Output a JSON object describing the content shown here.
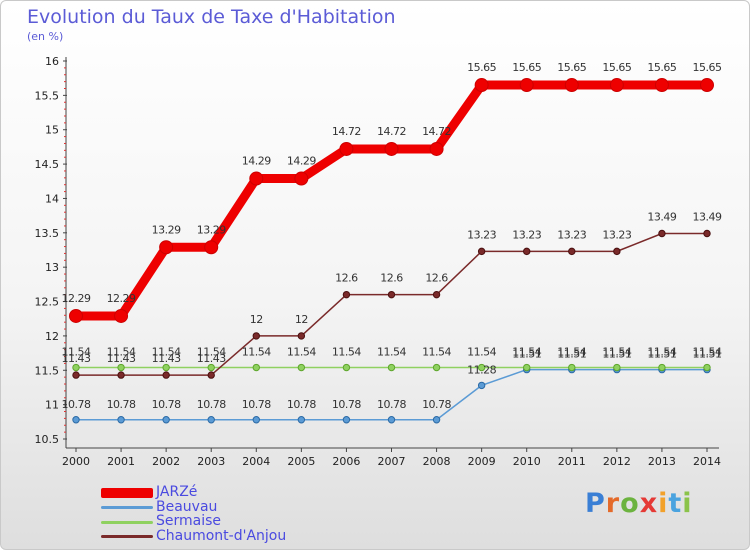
{
  "title": "Evolution du Taux de Taxe d'Habitation",
  "subtitle": "(en %)",
  "brand": {
    "text": "Proxiti",
    "letter_colors": [
      "#3a7fd5",
      "#e46a2a",
      "#6cb33f",
      "#e53935",
      "#f2a12a",
      "#4aa3df",
      "#8bc34a"
    ]
  },
  "chart_data": {
    "type": "line",
    "x": [
      "2000",
      "2001",
      "2002",
      "2003",
      "2004",
      "2005",
      "2006",
      "2007",
      "2008",
      "2009",
      "2010",
      "2011",
      "2012",
      "2013",
      "2014"
    ],
    "ylim": [
      10.5,
      16
    ],
    "yticks": [
      "10.5",
      "11",
      "11.5",
      "12",
      "12.5",
      "13",
      "13.5",
      "14",
      "14.5",
      "15",
      "15.5",
      "16"
    ],
    "grid": false,
    "legend_position": "bottom-left",
    "series": [
      {
        "name": "JARZé",
        "color": "#ee0000",
        "values": [
          12.29,
          12.29,
          13.29,
          13.29,
          14.29,
          14.29,
          14.72,
          14.72,
          14.72,
          15.65,
          15.65,
          15.65,
          15.65,
          15.65,
          15.65
        ],
        "labels": [
          "12.29",
          "12.29",
          "13.29",
          "13.29",
          "14.29",
          "14.29",
          "14.72",
          "14.72",
          "14.72",
          "15.65",
          "15.65",
          "15.65",
          "15.65",
          "15.65",
          "15.65"
        ]
      },
      {
        "name": "Beauvau",
        "color": "#5b9bd5",
        "values": [
          10.78,
          10.78,
          10.78,
          10.78,
          10.78,
          10.78,
          10.78,
          10.78,
          10.78,
          11.28,
          11.51,
          11.51,
          11.51,
          11.51,
          11.51
        ],
        "labels": [
          "10.78",
          "10.78",
          "10.78",
          "10.78",
          "10.78",
          "10.78",
          "10.78",
          "10.78",
          "10.78",
          "11.28",
          "11.51",
          "11.51",
          "11.51",
          "11.51",
          "11.51"
        ]
      },
      {
        "name": "Sermaise",
        "color": "#8fd160",
        "values": [
          11.54,
          11.54,
          11.54,
          11.54,
          11.54,
          11.54,
          11.54,
          11.54,
          11.54,
          11.54,
          11.54,
          11.54,
          11.54,
          11.54,
          11.54
        ],
        "labels": [
          "11.54",
          "11.54",
          "11.54",
          "11.54",
          "11.54",
          "11.54",
          "11.54",
          "11.54",
          "11.54",
          "11.54",
          "11.54",
          "11.54",
          "11.54",
          "11.54",
          "11.54"
        ]
      },
      {
        "name": "Chaumont-d'Anjou",
        "color": "#7a2a2a",
        "values": [
          11.43,
          11.43,
          11.43,
          11.43,
          12,
          12,
          12.6,
          12.6,
          12.6,
          13.23,
          13.23,
          13.23,
          13.23,
          13.49,
          13.49
        ],
        "labels": [
          "11.43",
          "11.43",
          "11.43",
          "11.43",
          "12",
          "12",
          "12.6",
          "12.6",
          "12.6",
          "13.23",
          "13.23",
          "13.23",
          "13.23",
          "13.49",
          "13.49"
        ]
      }
    ]
  }
}
